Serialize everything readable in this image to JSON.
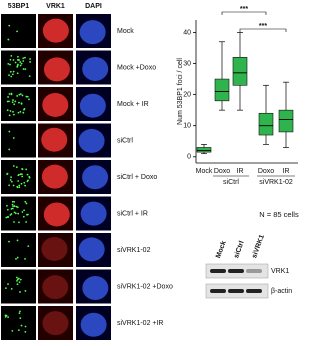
{
  "panel": {
    "channels": [
      "53BP1",
      "VRK1",
      "DAPI"
    ],
    "rows": [
      "Mock",
      "Mock +Doxo",
      "Mock + IR",
      "siCtrl",
      "siCtrl + Doxo",
      "siCtrl + IR",
      "siVRK1-02",
      "siVRK1-02 +Doxo",
      "siVRK1-02 +IR"
    ]
  },
  "chart_data": {
    "type": "box",
    "y_label": "Num 53BP1 foci / cell",
    "categories": [
      "Mock",
      "Doxo",
      "IR",
      "Doxo",
      "IR"
    ],
    "groups": [
      {
        "name": "siCtrl",
        "members": [
          1,
          2
        ]
      },
      {
        "name": "siVRK1-02",
        "members": [
          3,
          4
        ]
      }
    ],
    "boxes": [
      {
        "min": 1,
        "q1": 1.5,
        "median": 2,
        "q3": 3,
        "max": 4
      },
      {
        "min": 15,
        "q1": 18,
        "median": 21,
        "q3": 25,
        "max": 37
      },
      {
        "min": 15,
        "q1": 23,
        "median": 27,
        "q3": 32,
        "max": 40
      },
      {
        "min": 4,
        "q1": 7,
        "median": 10,
        "q3": 14,
        "max": 23
      },
      {
        "min": 3,
        "q1": 8,
        "median": 12,
        "q3": 15,
        "max": 24
      }
    ],
    "color": "#2fb34c",
    "ylim": [
      -2,
      44
    ],
    "yticks": [
      0,
      10,
      20,
      30,
      40
    ],
    "significance": [
      {
        "from": 1,
        "to": 3,
        "label": "***"
      },
      {
        "from": 2,
        "to": 4,
        "label": "***"
      }
    ],
    "note": "N = 85 cells"
  },
  "blot": {
    "lanes": [
      "Mock",
      "siCtrl",
      "siVRK1"
    ],
    "bands": [
      "VRK1",
      "β-actin"
    ]
  }
}
